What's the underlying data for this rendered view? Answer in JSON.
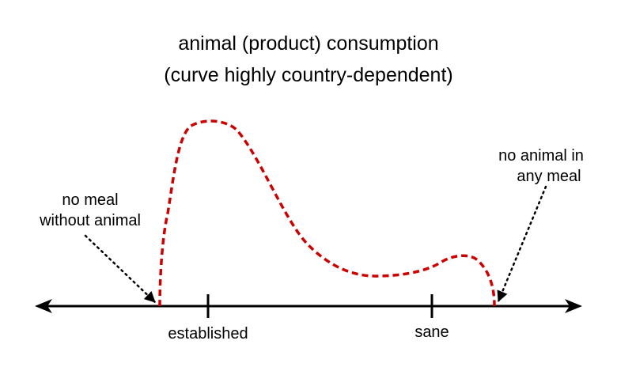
{
  "title": {
    "line1": "animal (product) consumption",
    "line2": "(curve highly country-dependent)"
  },
  "axis": {
    "ticks": [
      "established",
      "sane"
    ]
  },
  "annotations": {
    "left": {
      "line1": "no meal",
      "line2": "without animal"
    },
    "right": {
      "line1": "no animal in",
      "line2": "any meal"
    }
  },
  "colors": {
    "curve": "#cc0000",
    "axis": "#000000"
  }
}
